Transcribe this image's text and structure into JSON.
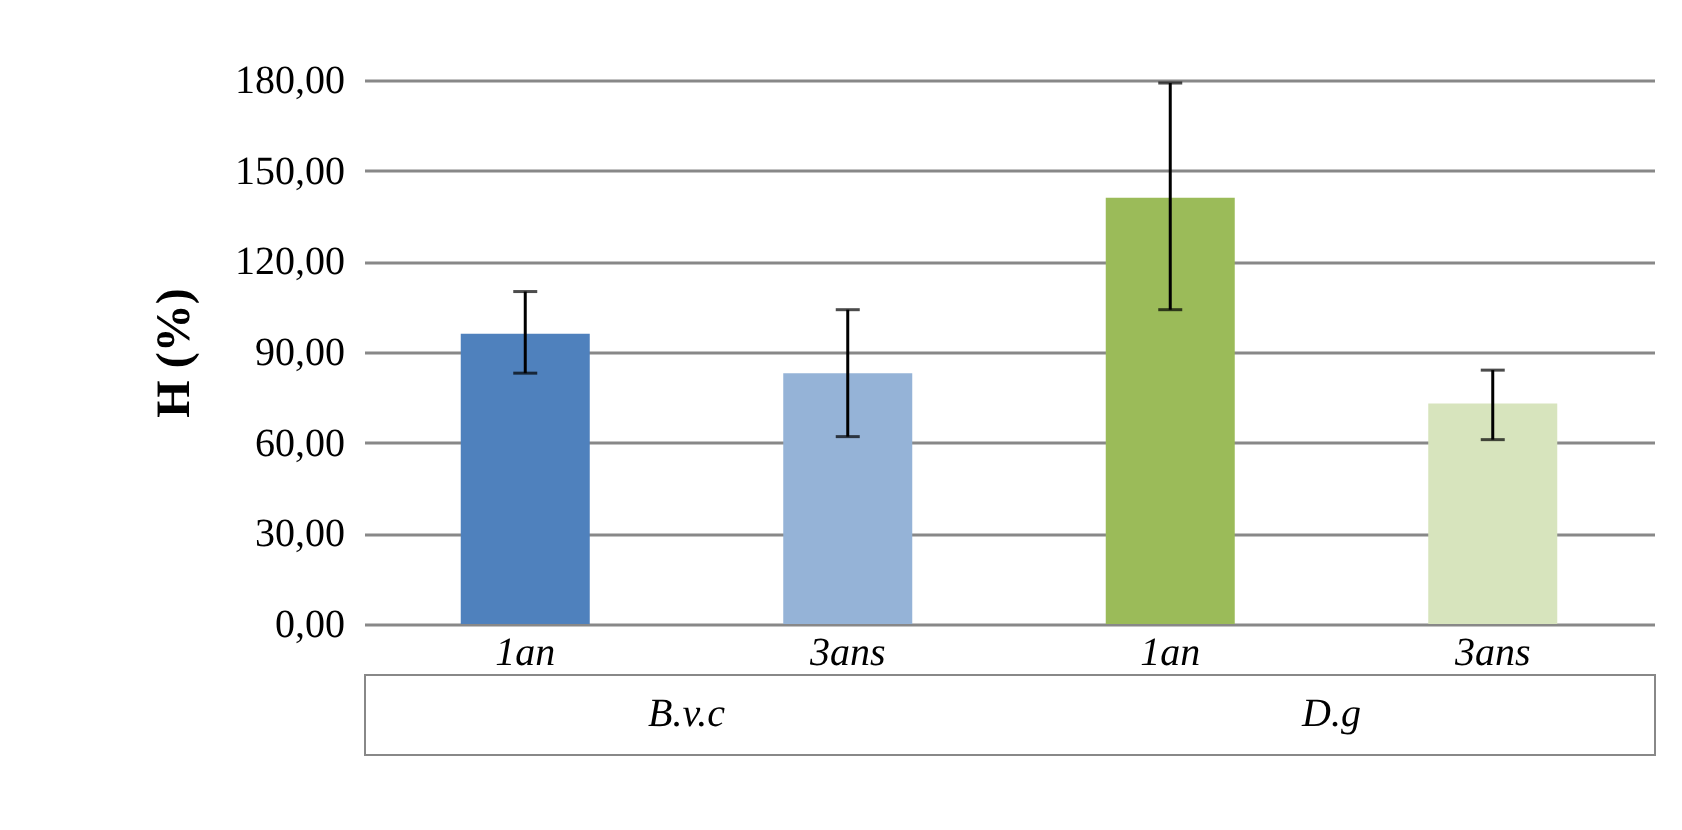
{
  "chart_data": {
    "type": "bar",
    "ylabel": "H (%)",
    "categories": [
      "1an",
      "3ans",
      "1an",
      "3ans"
    ],
    "values": [
      96,
      83,
      141,
      73
    ],
    "colors": [
      "#4f81bd",
      "#95b3d7",
      "#9bbb59",
      "#d7e4bd"
    ],
    "errors": [
      [
        83,
        110
      ],
      [
        62,
        104
      ],
      [
        104,
        179
      ],
      [
        61,
        84
      ]
    ],
    "ylim": [
      0,
      180
    ],
    "yticks": [
      {
        "value": 0,
        "label": "0,00"
      },
      {
        "value": 30,
        "label": "30,00"
      },
      {
        "value": 60,
        "label": "60,00"
      },
      {
        "value": 90,
        "label": "90,00"
      },
      {
        "value": 120,
        "label": "120,00"
      },
      {
        "value": 150,
        "label": "150,00"
      },
      {
        "value": 180,
        "label": "180,00"
      }
    ],
    "annotations": [
      "B.v.c",
      "D.g"
    ],
    "grid": true
  }
}
